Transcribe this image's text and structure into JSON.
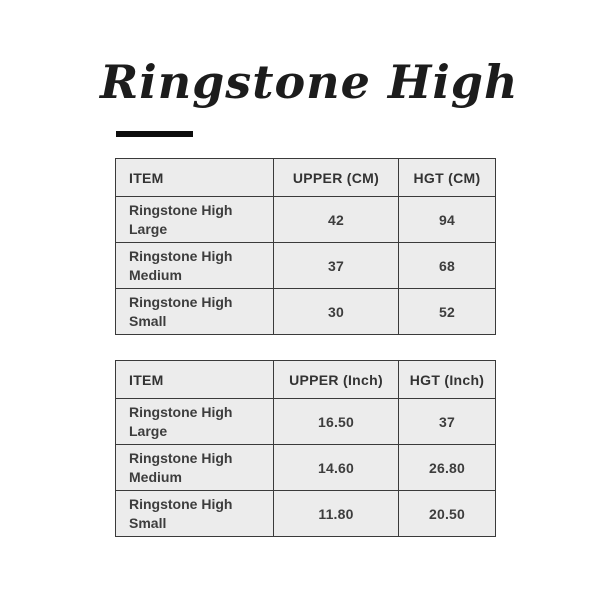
{
  "title": {
    "text": "Ringstone High"
  },
  "colors": {
    "page_background": "#ffffff",
    "cell_background": "#ececec",
    "table_border": "#3a3a3a",
    "text": "#3d3d3d",
    "title_text": "#1c1c1c",
    "underline": "#0d0d0d"
  },
  "tables": [
    {
      "unit": "CM",
      "columns": [
        "ITEM",
        "UPPER (CM)",
        "HGT (CM)"
      ],
      "rows": [
        {
          "item": "Ringstone High Large",
          "upper": "42",
          "hgt": "94"
        },
        {
          "item": "Ringstone High Medium",
          "upper": "37",
          "hgt": "68"
        },
        {
          "item": "Ringstone High Small",
          "upper": "30",
          "hgt": "52"
        }
      ]
    },
    {
      "unit": "Inch",
      "columns": [
        "ITEM",
        "UPPER (Inch)",
        "HGT (Inch)"
      ],
      "rows": [
        {
          "item": "Ringstone High Large",
          "upper": "16.50",
          "hgt": "37"
        },
        {
          "item": "Ringstone High Medium",
          "upper": "14.60",
          "hgt": "26.80"
        },
        {
          "item": "Ringstone High Small",
          "upper": "11.80",
          "hgt": "20.50"
        }
      ]
    }
  ]
}
